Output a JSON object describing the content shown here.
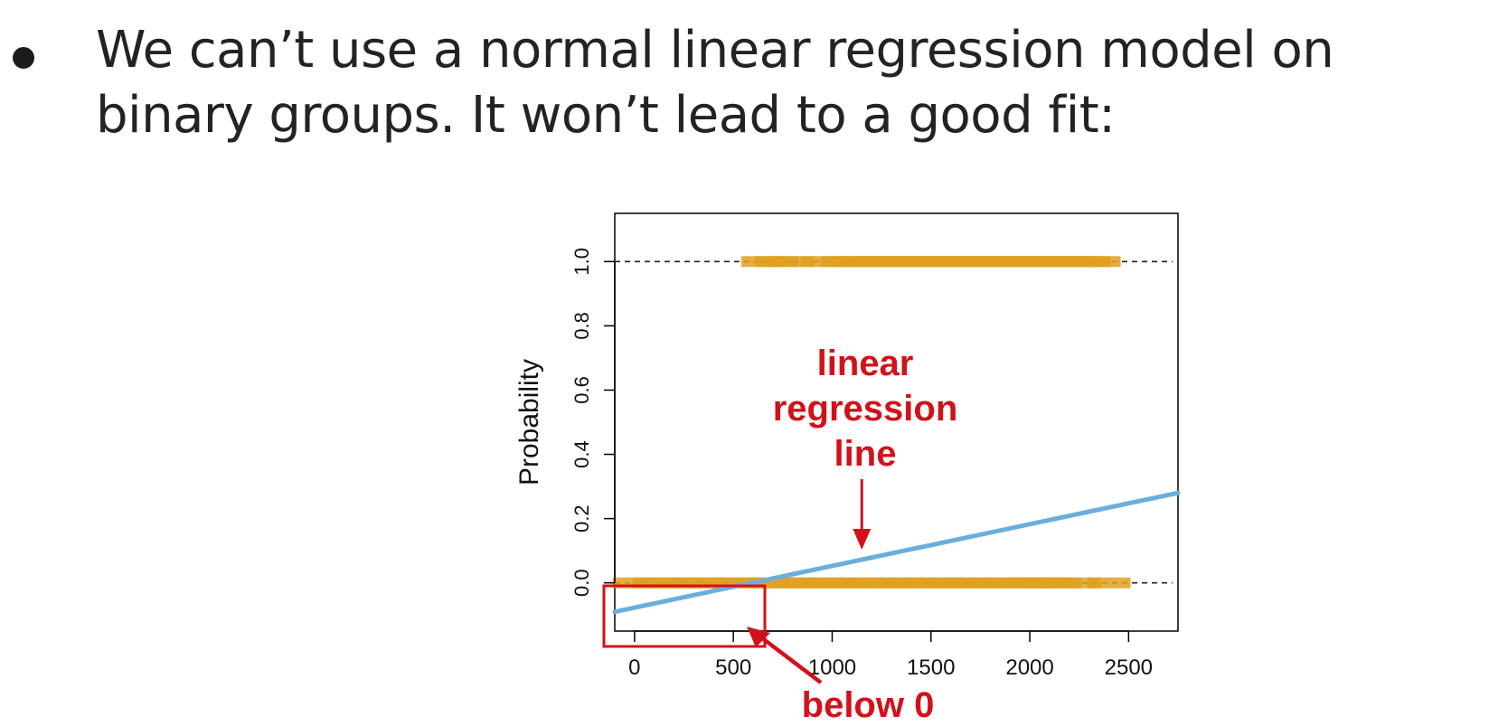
{
  "slide": {
    "bullet_text": "We can’t use a normal linear regression model on binary groups. It won’t lead to a good fit:"
  },
  "chart_data": {
    "type": "scatter",
    "title": "",
    "xlabel": "",
    "ylabel": "Probability",
    "xlim": [
      -100,
      2750
    ],
    "ylim": [
      -0.15,
      1.15
    ],
    "x_ticks": [
      "0",
      "500",
      "1000",
      "1500",
      "2000",
      "2500"
    ],
    "y_ticks": [
      "0.0",
      "0.2",
      "0.4",
      "0.6",
      "0.8",
      "1.0"
    ],
    "reference_lines": [
      0,
      1
    ],
    "series": [
      {
        "color": "#e0a020",
        "points": [
          {
            "x": 0,
            "y": 0
          },
          {
            "x": 100,
            "y": 0
          },
          {
            "x": 200,
            "y": 0
          },
          {
            "x": 300,
            "y": 0
          },
          {
            "x": 400,
            "y": 0
          },
          {
            "x": 500,
            "y": 0
          },
          {
            "x": 600,
            "y": 0
          },
          {
            "x": 700,
            "y": 0
          },
          {
            "x": 800,
            "y": 0
          },
          {
            "x": 900,
            "y": 0
          },
          {
            "x": 1000,
            "y": 0
          },
          {
            "x": 1100,
            "y": 0
          },
          {
            "x": 1200,
            "y": 0
          },
          {
            "x": 1300,
            "y": 0
          },
          {
            "x": 1400,
            "y": 0
          },
          {
            "x": 1500,
            "y": 0
          },
          {
            "x": 1600,
            "y": 0
          },
          {
            "x": 1700,
            "y": 0
          },
          {
            "x": 1800,
            "y": 0
          },
          {
            "x": 1900,
            "y": 0
          },
          {
            "x": 1950,
            "y": 0
          },
          {
            "x": 2000,
            "y": 0
          },
          {
            "x": 2050,
            "y": 0
          },
          {
            "x": 2100,
            "y": 0
          },
          {
            "x": 2150,
            "y": 0
          },
          {
            "x": 2250,
            "y": 0
          },
          {
            "x": 2400,
            "y": 0
          },
          {
            "x": 650,
            "y": 1
          },
          {
            "x": 720,
            "y": 1
          },
          {
            "x": 800,
            "y": 1
          },
          {
            "x": 950,
            "y": 1
          },
          {
            "x": 1050,
            "y": 1
          },
          {
            "x": 1100,
            "y": 1
          },
          {
            "x": 1150,
            "y": 1
          },
          {
            "x": 1200,
            "y": 1
          },
          {
            "x": 1250,
            "y": 1
          },
          {
            "x": 1300,
            "y": 1
          },
          {
            "x": 1350,
            "y": 1
          },
          {
            "x": 1400,
            "y": 1
          },
          {
            "x": 1450,
            "y": 1
          },
          {
            "x": 1500,
            "y": 1
          },
          {
            "x": 1550,
            "y": 1
          },
          {
            "x": 1600,
            "y": 1
          },
          {
            "x": 1650,
            "y": 1
          },
          {
            "x": 1700,
            "y": 1
          },
          {
            "x": 1750,
            "y": 1
          },
          {
            "x": 1800,
            "y": 1
          },
          {
            "x": 1850,
            "y": 1
          },
          {
            "x": 1900,
            "y": 1
          },
          {
            "x": 1950,
            "y": 1
          },
          {
            "x": 2000,
            "y": 1
          },
          {
            "x": 2050,
            "y": 1
          },
          {
            "x": 2100,
            "y": 1
          },
          {
            "x": 2150,
            "y": 1
          },
          {
            "x": 2200,
            "y": 1
          },
          {
            "x": 2250,
            "y": 1
          },
          {
            "x": 2300,
            "y": 1
          },
          {
            "x": 2350,
            "y": 1
          }
        ]
      },
      {
        "type": "line",
        "color": "#6aaedc",
        "points": [
          {
            "x": -100,
            "y": -0.09
          },
          {
            "x": 2750,
            "y": 0.28
          }
        ]
      }
    ],
    "annotations": [
      {
        "text": "linear\nregression\nline",
        "color": "#d0121b",
        "points_to": {
          "x": 1150,
          "y": 0.1
        }
      },
      {
        "text": "below 0",
        "color": "#d0121b",
        "points_to": {
          "x": 600,
          "y": -0.14
        },
        "highlight_box": {
          "x": [
            -100,
            650
          ],
          "y": [
            -0.19,
            -0.01
          ]
        }
      }
    ]
  }
}
